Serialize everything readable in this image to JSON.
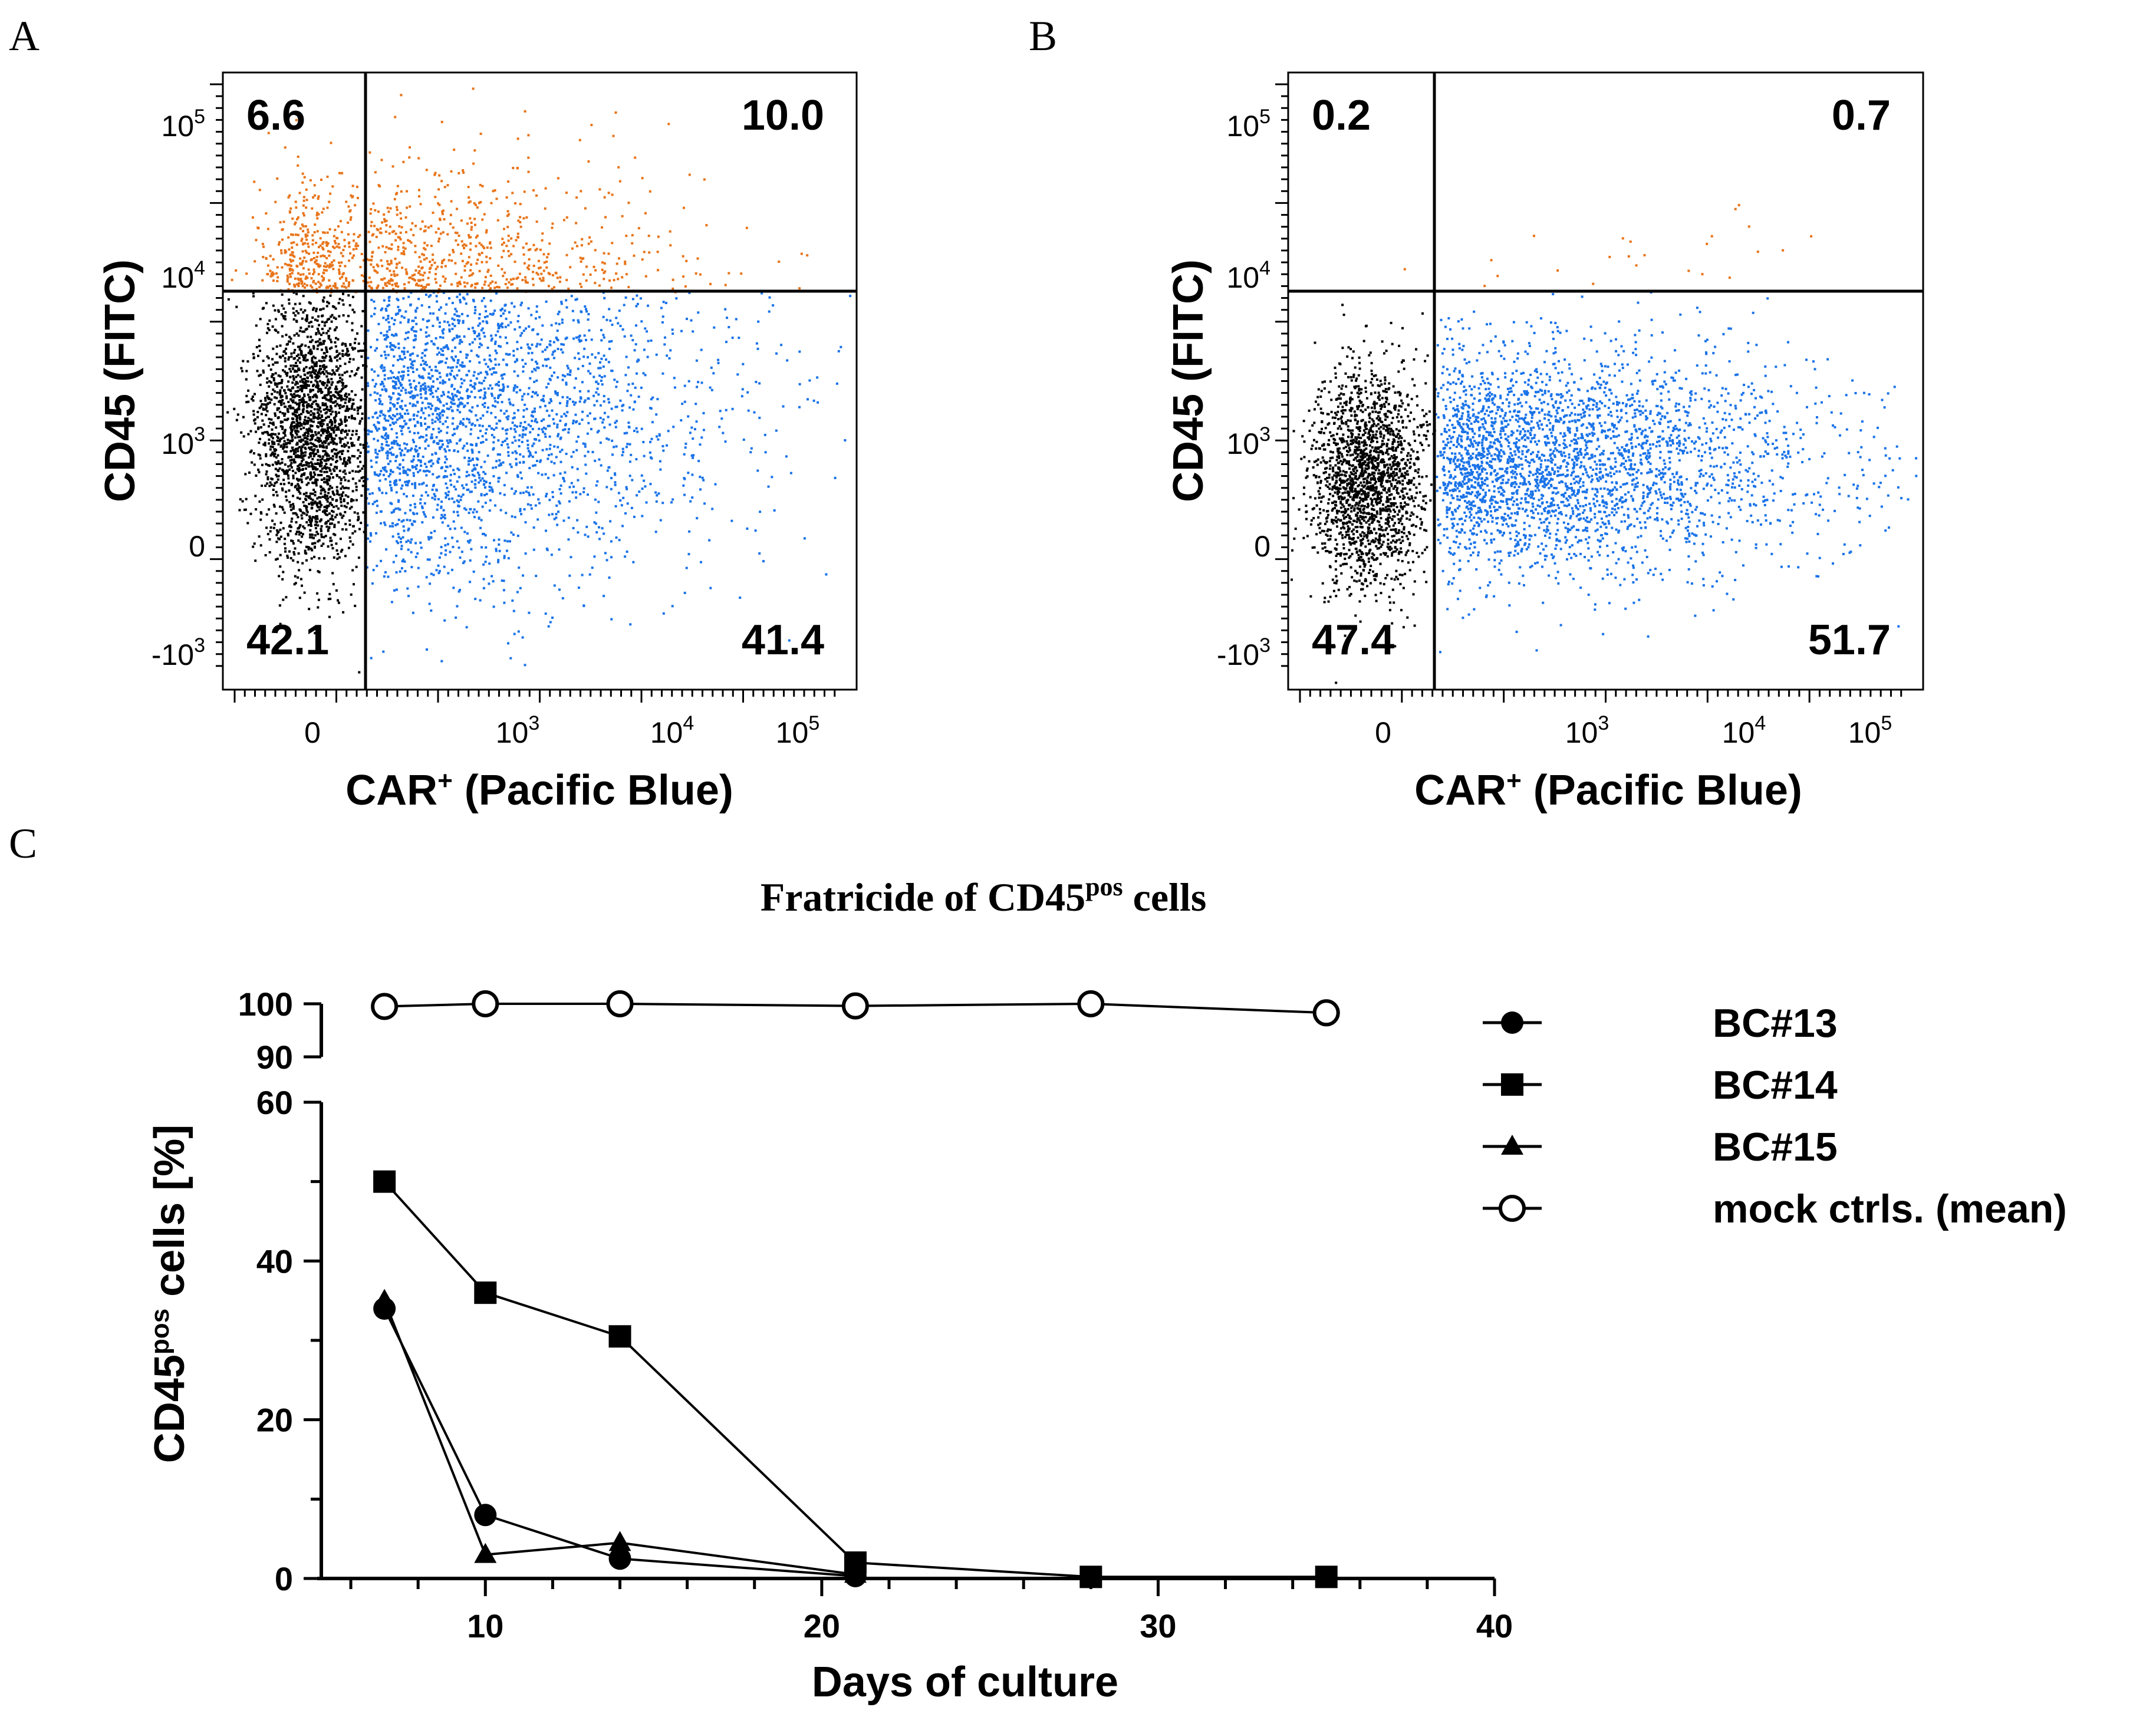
{
  "colors": {
    "car_positive": "#1a73e8",
    "cd45_positive": "#e8741a",
    "negative": "#000000",
    "line": "#000000"
  },
  "panels": [
    {
      "letter": "A",
      "xlabel": "CAR",
      "xlabel_sup": "+",
      "xlabel_rest": " (Pacific Blue)",
      "ylabel": "CD45 (FITC)",
      "x_ticks": [
        {
          "base": "0"
        },
        {
          "base": "10",
          "exp": "3"
        },
        {
          "base": "10",
          "exp": "4"
        },
        {
          "base": "10",
          "exp": "5"
        }
      ],
      "y_ticks": [
        {
          "base": "10",
          "exp": "5"
        },
        {
          "base": "10",
          "exp": "4"
        },
        {
          "base": "10",
          "exp": "3"
        },
        {
          "base": "0"
        },
        {
          "base": "-10",
          "exp": "3"
        }
      ],
      "quadrants": {
        "upper_left": "6.6",
        "upper_right": "10.0",
        "lower_left": "42.1",
        "lower_right": "41.4"
      }
    },
    {
      "letter": "B",
      "xlabel": "CAR",
      "xlabel_sup": "+",
      "xlabel_rest": " (Pacific Blue)",
      "ylabel": "CD45 (FITC)",
      "x_ticks": [
        {
          "base": "0"
        },
        {
          "base": "10",
          "exp": "3"
        },
        {
          "base": "10",
          "exp": "4"
        },
        {
          "base": "10",
          "exp": "5"
        }
      ],
      "y_ticks": [
        {
          "base": "10",
          "exp": "5"
        },
        {
          "base": "10",
          "exp": "4"
        },
        {
          "base": "10",
          "exp": "3"
        },
        {
          "base": "0"
        },
        {
          "base": "-10",
          "exp": "3"
        }
      ],
      "quadrants": {
        "upper_left": "0.2",
        "upper_right": "0.7",
        "lower_left": "47.4",
        "lower_right": "51.7"
      }
    }
  ],
  "chart_data": [
    {
      "type": "scatter",
      "panel": "A",
      "title": "",
      "xlabel": "CAR+ (Pacific Blue)",
      "ylabel": "CD45 (FITC)",
      "x_scale": "biexponential",
      "y_scale": "biexponential",
      "quadrant_percentages": {
        "upper_left": 6.6,
        "upper_right": 10.0,
        "lower_left": 42.1,
        "lower_right": 41.4
      }
    },
    {
      "type": "scatter",
      "panel": "B",
      "title": "",
      "xlabel": "CAR+ (Pacific Blue)",
      "ylabel": "CD45 (FITC)",
      "x_scale": "biexponential",
      "y_scale": "biexponential",
      "quadrant_percentages": {
        "upper_left": 0.2,
        "upper_right": 0.7,
        "lower_left": 47.4,
        "lower_right": 51.7
      }
    },
    {
      "type": "line",
      "panel": "C",
      "letter": "C",
      "title": "Fratricide of CD45",
      "title_sup": "pos",
      "title_rest": " cells",
      "xlabel": "Days of culture",
      "ylabel": "CD45",
      "ylabel_sup": "pos",
      "ylabel_rest": " cells [%]",
      "xlim": [
        5,
        40
      ],
      "ylim_lower": [
        0,
        60
      ],
      "ylim_upper": [
        90,
        100
      ],
      "x_ticks": [
        "10",
        "20",
        "30",
        "40"
      ],
      "y_ticks_lower": [
        "0",
        "20",
        "40",
        "60"
      ],
      "y_ticks_upper": [
        "90",
        "100"
      ],
      "series": [
        {
          "name": "BC#13",
          "marker": "circle-filled",
          "x": [
            7,
            10,
            14,
            21
          ],
          "values": [
            34,
            8,
            2.5,
            0.3
          ]
        },
        {
          "name": "BC#14",
          "marker": "square-filled",
          "x": [
            7,
            10,
            14,
            21,
            28,
            35
          ],
          "values": [
            50,
            36,
            30.5,
            2,
            0.2,
            0.2
          ]
        },
        {
          "name": "BC#15",
          "marker": "triangle-filled",
          "x": [
            7,
            10,
            14,
            21
          ],
          "values": [
            35,
            3,
            4.5,
            0.5
          ]
        },
        {
          "name": "mock ctrls. (mean)",
          "marker": "circle-open",
          "x": [
            7,
            10,
            14,
            21,
            28,
            35
          ],
          "values": [
            99.5,
            100,
            100,
            99.6,
            100,
            98.3
          ]
        }
      ]
    }
  ]
}
